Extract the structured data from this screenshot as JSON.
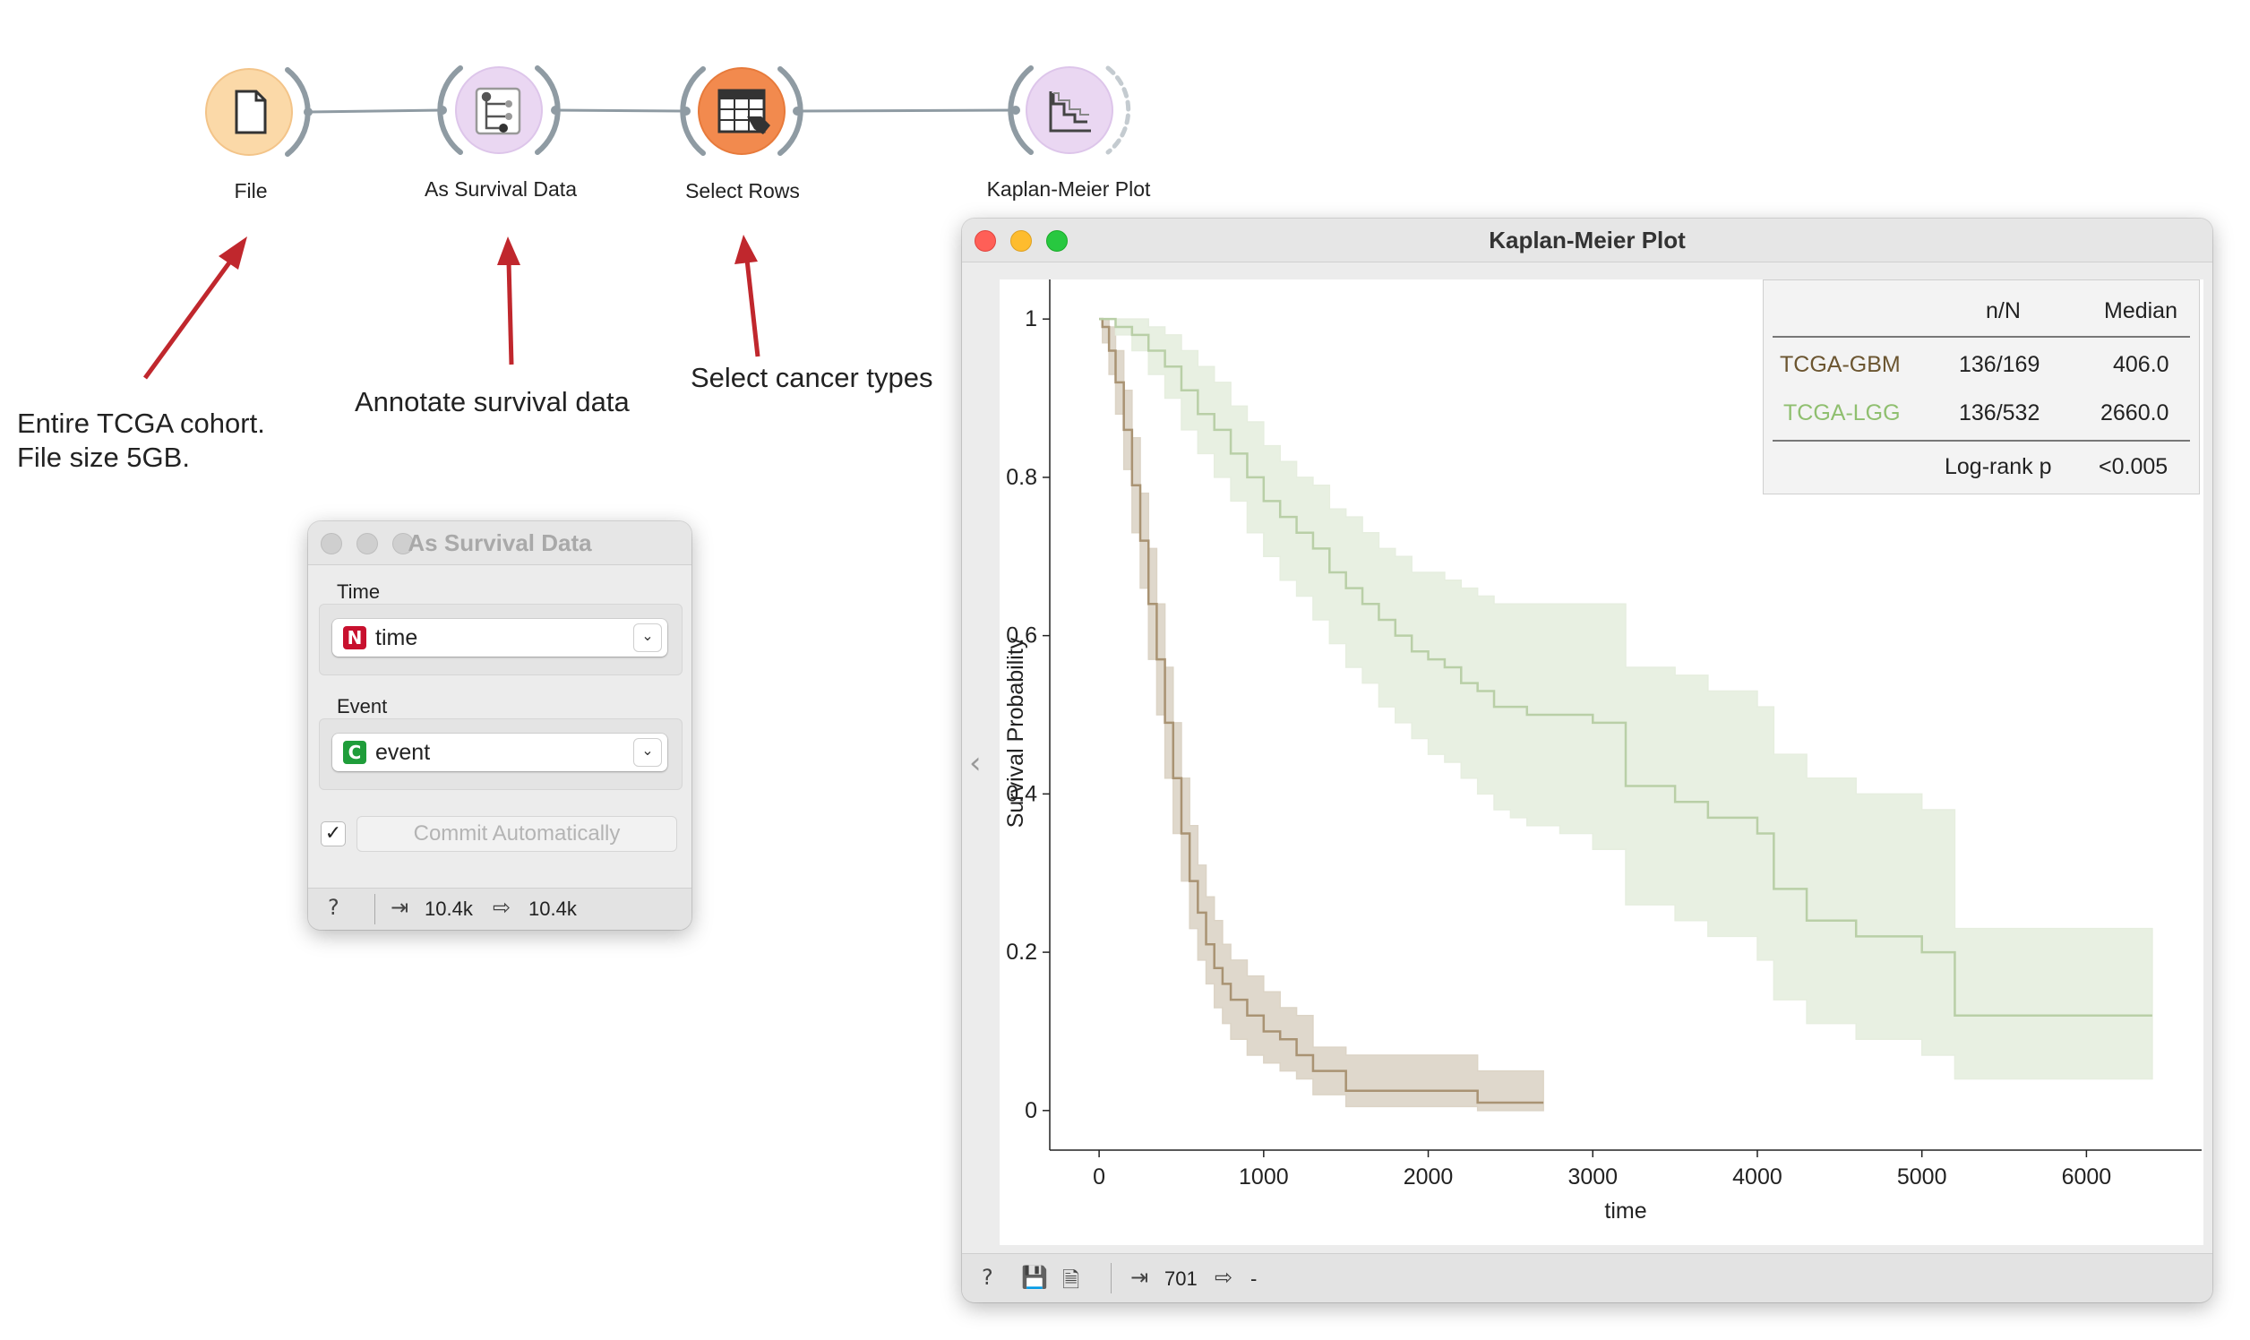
{
  "workflow": {
    "nodes": [
      {
        "label": "File",
        "icon": "file-icon",
        "color": "#fbd9a8"
      },
      {
        "label": "As Survival Data",
        "icon": "survival-tree-icon",
        "color": "#ead7f2"
      },
      {
        "label": "Select Rows",
        "icon": "table-cursor-icon",
        "color": "#f28a4e"
      },
      {
        "label": "Kaplan-Meier Plot",
        "icon": "stepped-curve-icon",
        "color": "#ead7f2"
      }
    ],
    "link_color": "#8f9ba3",
    "annotations": [
      {
        "line1": "Entire TCGA cohort.",
        "line2": "File size 5GB."
      },
      {
        "line1": "Annotate survival data"
      },
      {
        "line1": "Select cancer types"
      }
    ],
    "arrow_color": "#c0272d"
  },
  "survival_window": {
    "title": "As Survival Data",
    "time_label": "Time",
    "time_value": "time",
    "time_badge": "N",
    "time_badge_color": "#c8102e",
    "event_label": "Event",
    "event_value": "event",
    "event_badge": "C",
    "event_badge_color": "#1f9d3a",
    "commit_label": "Commit Automatically",
    "commit_checked": true,
    "input_count": "10.4k",
    "output_count": "10.4k"
  },
  "km_window": {
    "title": "Kaplan-Meier Plot",
    "legend": {
      "header_n": "n/N",
      "header_median": "Median",
      "rows": [
        {
          "name": "TCGA-GBM",
          "n": "136/169",
          "median": "406.0",
          "color": "#6b5530"
        },
        {
          "name": "TCGA-LGG",
          "n": "136/532",
          "median": "2660.0",
          "color": "#8fbf6f"
        }
      ],
      "logrank_label": "Log-rank p",
      "logrank_value": "<0.005"
    },
    "status_count": "701",
    "status_output": "-"
  },
  "chart_data": {
    "type": "line",
    "xlabel": "time",
    "ylabel": "Survival Probability",
    "xlim": [
      -300,
      6700
    ],
    "ylim": [
      -0.05,
      1.05
    ],
    "xticks": [
      0,
      1000,
      2000,
      3000,
      4000,
      5000,
      6000
    ],
    "yticks": [
      0,
      0.2,
      0.4,
      0.6,
      0.8,
      1
    ],
    "ytick_labels": [
      "0",
      "0.2",
      "0.4",
      "0.6",
      "0.8",
      "1"
    ],
    "series": [
      {
        "name": "TCGA-GBM",
        "color": "#a99373",
        "band_color": "#dcd4c6",
        "x": [
          0,
          20,
          60,
          100,
          150,
          200,
          250,
          300,
          350,
          400,
          450,
          500,
          550,
          600,
          650,
          700,
          750,
          800,
          900,
          1000,
          1100,
          1200,
          1300,
          1500,
          1700,
          2000,
          2300,
          2700
        ],
        "y": [
          1.0,
          0.99,
          0.96,
          0.92,
          0.86,
          0.79,
          0.72,
          0.64,
          0.57,
          0.49,
          0.42,
          0.35,
          0.29,
          0.25,
          0.21,
          0.18,
          0.16,
          0.14,
          0.12,
          0.1,
          0.09,
          0.07,
          0.05,
          0.025,
          0.025,
          0.025,
          0.01,
          0.01
        ],
        "lower": [
          1.0,
          0.97,
          0.93,
          0.88,
          0.81,
          0.73,
          0.66,
          0.57,
          0.5,
          0.42,
          0.35,
          0.29,
          0.23,
          0.19,
          0.16,
          0.13,
          0.11,
          0.09,
          0.07,
          0.06,
          0.05,
          0.04,
          0.02,
          0.005,
          0.005,
          0.005,
          0.0,
          0.0
        ],
        "upper": [
          1.0,
          1.0,
          0.99,
          0.96,
          0.91,
          0.85,
          0.78,
          0.71,
          0.64,
          0.56,
          0.49,
          0.42,
          0.36,
          0.31,
          0.27,
          0.24,
          0.21,
          0.19,
          0.17,
          0.15,
          0.13,
          0.12,
          0.08,
          0.07,
          0.07,
          0.07,
          0.05,
          0.05
        ]
      },
      {
        "name": "TCGA-LGG",
        "color": "#b9cfa7",
        "band_color": "#e6eedf",
        "x": [
          0,
          100,
          200,
          300,
          400,
          500,
          600,
          700,
          800,
          900,
          1000,
          1100,
          1200,
          1300,
          1400,
          1500,
          1600,
          1700,
          1800,
          1900,
          2000,
          2100,
          2200,
          2300,
          2400,
          2500,
          2600,
          2800,
          3000,
          3200,
          3500,
          3700,
          4000,
          4100,
          4300,
          4600,
          5000,
          5200,
          5600,
          6000,
          6400
        ],
        "y": [
          1.0,
          0.99,
          0.98,
          0.96,
          0.94,
          0.91,
          0.88,
          0.86,
          0.83,
          0.8,
          0.77,
          0.75,
          0.73,
          0.71,
          0.68,
          0.66,
          0.64,
          0.62,
          0.6,
          0.58,
          0.57,
          0.56,
          0.54,
          0.53,
          0.51,
          0.51,
          0.5,
          0.5,
          0.49,
          0.41,
          0.39,
          0.37,
          0.35,
          0.28,
          0.24,
          0.22,
          0.2,
          0.12,
          0.12,
          0.12,
          0.12
        ],
        "lower": [
          1.0,
          0.98,
          0.96,
          0.93,
          0.9,
          0.86,
          0.83,
          0.8,
          0.77,
          0.73,
          0.7,
          0.67,
          0.65,
          0.62,
          0.59,
          0.56,
          0.54,
          0.51,
          0.49,
          0.47,
          0.45,
          0.44,
          0.42,
          0.4,
          0.38,
          0.37,
          0.36,
          0.35,
          0.33,
          0.26,
          0.24,
          0.22,
          0.19,
          0.14,
          0.11,
          0.09,
          0.07,
          0.04,
          0.04,
          0.04,
          0.04
        ],
        "upper": [
          1.0,
          1.0,
          1.0,
          0.99,
          0.98,
          0.96,
          0.94,
          0.92,
          0.89,
          0.87,
          0.84,
          0.82,
          0.8,
          0.79,
          0.76,
          0.75,
          0.73,
          0.71,
          0.7,
          0.68,
          0.68,
          0.67,
          0.66,
          0.65,
          0.64,
          0.64,
          0.64,
          0.64,
          0.64,
          0.56,
          0.55,
          0.53,
          0.51,
          0.45,
          0.42,
          0.4,
          0.38,
          0.23,
          0.23,
          0.23,
          0.23
        ]
      }
    ]
  }
}
